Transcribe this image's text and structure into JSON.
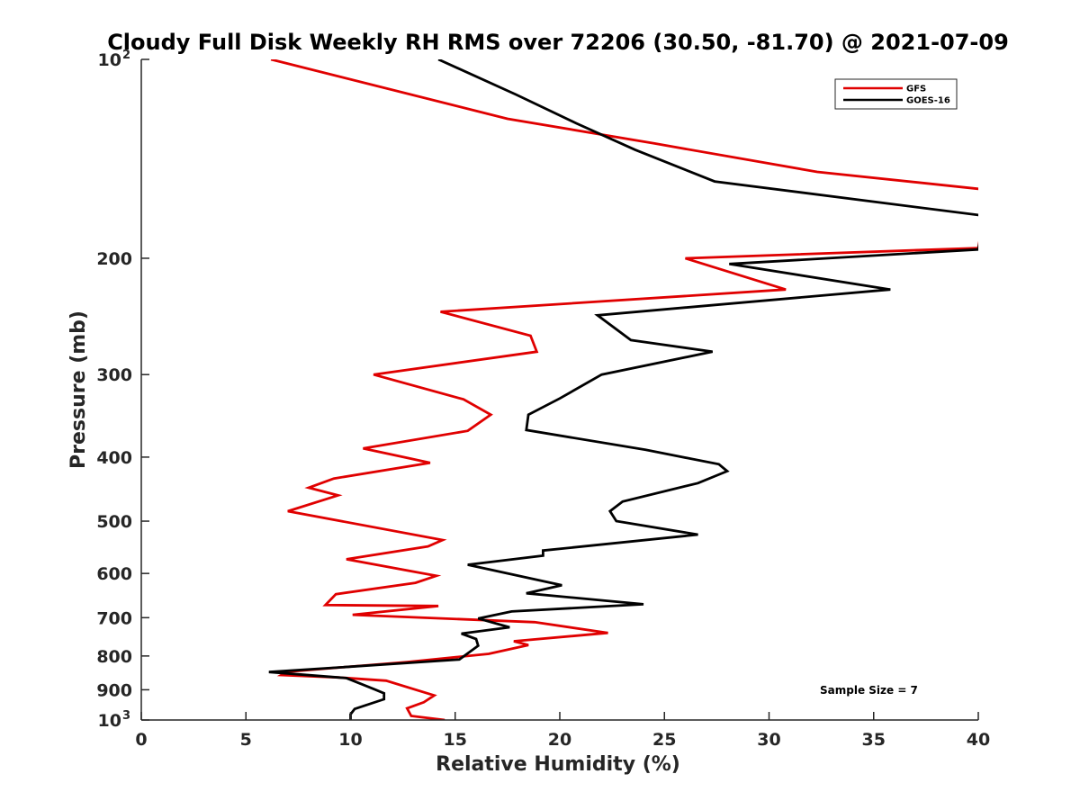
{
  "chart_data": {
    "type": "line",
    "title": "Cloudy Full Disk Weekly RH RMS over 72206 (30.50, -81.70) @ 2021-07-09",
    "xlabel": "Relative Humidity (%)",
    "ylabel": "Pressure (mb)",
    "xlim": [
      0,
      40
    ],
    "ylim": [
      100,
      1000
    ],
    "yscale": "log",
    "y_reversed": true,
    "grid": false,
    "x_ticks": [
      0,
      5,
      10,
      15,
      20,
      25,
      30,
      35,
      40
    ],
    "x_tick_labels": [
      "0",
      "5",
      "10",
      "15",
      "20",
      "25",
      "30",
      "35",
      "40"
    ],
    "y_ticks": [
      100,
      200,
      300,
      400,
      500,
      600,
      700,
      800,
      900,
      1000
    ],
    "y_tick_labels": [
      {
        "base": "10",
        "exp": "2"
      },
      {
        "base": "200",
        "exp": ""
      },
      {
        "base": "300",
        "exp": ""
      },
      {
        "base": "400",
        "exp": ""
      },
      {
        "base": "500",
        "exp": ""
      },
      {
        "base": "600",
        "exp": ""
      },
      {
        "base": "700",
        "exp": ""
      },
      {
        "base": "800",
        "exp": ""
      },
      {
        "base": "900",
        "exp": ""
      },
      {
        "base": "10",
        "exp": "3"
      }
    ],
    "legend": {
      "position": "top-right",
      "entries": [
        "GFS",
        "GOES-16"
      ]
    },
    "annotation": "Sample Size = 7",
    "series": [
      {
        "name": "GFS",
        "color": "#e00000",
        "points": [
          [
            6.2,
            100
          ],
          [
            17.5,
            123
          ],
          [
            24.5,
            134
          ],
          [
            32.3,
            148
          ],
          [
            40.0,
            157
          ],
          [
            40.5,
            157.5
          ],
          [
            40.0,
            193
          ],
          [
            26.0,
            200
          ],
          [
            30.8,
            223
          ],
          [
            14.3,
            241
          ],
          [
            18.6,
            262
          ],
          [
            18.9,
            277
          ],
          [
            11.1,
            300
          ],
          [
            15.4,
            327
          ],
          [
            16.7,
            345
          ],
          [
            15.6,
            365
          ],
          [
            10.6,
            388
          ],
          [
            13.8,
            408
          ],
          [
            9.2,
            431
          ],
          [
            8.0,
            445
          ],
          [
            9.4,
            457
          ],
          [
            7.0,
            483
          ],
          [
            14.4,
            534
          ],
          [
            13.7,
            546
          ],
          [
            9.8,
            571
          ],
          [
            14.1,
            605
          ],
          [
            13.1,
            620
          ],
          [
            9.3,
            645
          ],
          [
            8.8,
            670
          ],
          [
            14.2,
            672
          ],
          [
            10.1,
            693
          ],
          [
            18.8,
            711
          ],
          [
            22.3,
            738
          ],
          [
            17.8,
            760
          ],
          [
            18.5,
            770
          ],
          [
            16.6,
            794
          ],
          [
            12.7,
            817
          ],
          [
            7.0,
            845
          ],
          [
            6.7,
            855
          ],
          [
            9.4,
            862
          ],
          [
            11.7,
            872
          ],
          [
            14.0,
            918
          ],
          [
            13.5,
            940
          ],
          [
            12.7,
            960
          ],
          [
            12.9,
            986
          ],
          [
            14.5,
            1000
          ],
          [
            13.8,
            1008
          ]
        ]
      },
      {
        "name": "GOES-16",
        "color": "#000000",
        "points": [
          [
            14.2,
            100
          ],
          [
            17.9,
            113
          ],
          [
            20.8,
            125
          ],
          [
            23.6,
            137
          ],
          [
            27.4,
            153
          ],
          [
            40.0,
            172
          ],
          [
            40.3,
            173
          ],
          [
            40.0,
            194
          ],
          [
            28.1,
            204
          ],
          [
            35.8,
            223
          ],
          [
            21.8,
            244
          ],
          [
            23.4,
            266
          ],
          [
            27.3,
            277
          ],
          [
            22.0,
            300
          ],
          [
            20.0,
            326
          ],
          [
            18.5,
            345
          ],
          [
            18.4,
            364
          ],
          [
            24.1,
            390
          ],
          [
            27.6,
            410
          ],
          [
            28.0,
            420
          ],
          [
            26.6,
            438
          ],
          [
            23.0,
            467
          ],
          [
            22.4,
            483
          ],
          [
            22.7,
            500
          ],
          [
            26.6,
            524
          ],
          [
            19.2,
            554
          ],
          [
            19.2,
            564
          ],
          [
            15.6,
            582
          ],
          [
            20.1,
            625
          ],
          [
            18.4,
            643
          ],
          [
            24.0,
            668
          ],
          [
            17.7,
            685
          ],
          [
            16.1,
            702
          ],
          [
            17.6,
            724
          ],
          [
            15.3,
            740
          ],
          [
            16.0,
            754
          ],
          [
            16.1,
            772
          ],
          [
            15.2,
            810
          ],
          [
            6.1,
            846
          ],
          [
            9.8,
            864
          ],
          [
            11.2,
            900
          ],
          [
            11.6,
            911
          ],
          [
            11.6,
            930
          ],
          [
            10.2,
            962
          ],
          [
            10.0,
            980
          ],
          [
            10.0,
            1000
          ]
        ]
      }
    ]
  }
}
